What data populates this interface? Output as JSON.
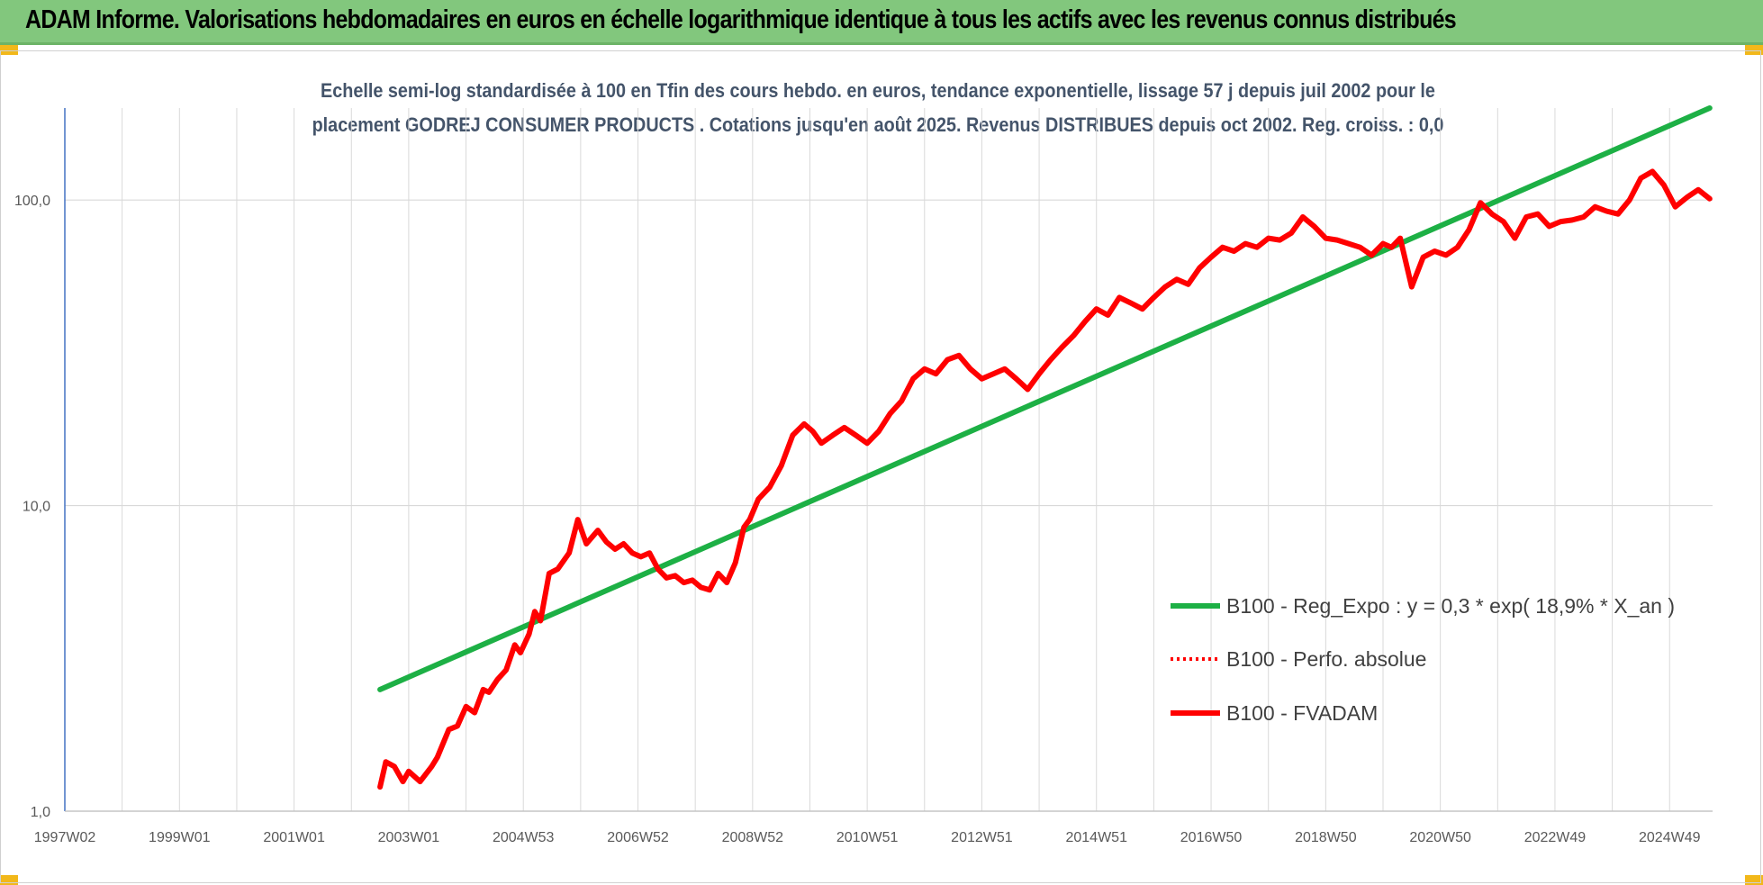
{
  "header": {
    "title": "ADAM Informe. Valorisations hebdomadaires en euros en échelle logarithmique identique à tous les actifs avec les revenus connus distribués"
  },
  "chart_data": {
    "type": "line",
    "title": "Echelle semi-log standardisée à 100 en Tfin des cours hebdo. en euros, tendance exponentielle, lissage 57 j depuis juil 2002 pour le",
    "subtitle": "placement GODREJ CONSUMER PRODUCTS . Cotations jusqu'en août 2025. Revenus DISTRIBUES depuis oct 2002. Reg. croiss. : 0,0",
    "y_scale": "log",
    "ylim": [
      1,
      200
    ],
    "y_ticks": [
      "1,0",
      "10,0",
      "100,0"
    ],
    "y_tick_values": [
      1,
      10,
      100
    ],
    "xlim": [
      1997.0,
      2025.75
    ],
    "x_ticks": [
      "1997W02",
      "1999W01",
      "2001W01",
      "2003W01",
      "2004W53",
      "2006W52",
      "2008W52",
      "2010W51",
      "2012W51",
      "2014W51",
      "2016W50",
      "2018W50",
      "2020W50",
      "2022W49",
      "2024W49"
    ],
    "x_tick_values": [
      1997.0,
      1999.0,
      2001.0,
      2003.0,
      2005.0,
      2007.0,
      2009.0,
      2011.0,
      2013.0,
      2015.0,
      2017.0,
      2019.0,
      2021.0,
      2023.0,
      2025.0
    ],
    "grid": "vertical and horizontal",
    "legend_placement": "bottom-right",
    "series": [
      {
        "name": "B100 - Reg_Expo : y = 0,3 * exp( 18,9% *  X_an )",
        "color": "#1db045",
        "style": "solid",
        "x": [
          2002.5,
          2025.7
        ],
        "y": [
          2.5,
          200
        ]
      },
      {
        "name": "B100 - Perfo. absolue",
        "color": "#ff0000",
        "style": "dotted",
        "x": [],
        "y": []
      },
      {
        "name": "B100 - FVADAM",
        "color": "#ff0000",
        "style": "solid",
        "x": [
          2002.5,
          2002.6,
          2002.75,
          2002.9,
          2003.0,
          2003.2,
          2003.4,
          2003.5,
          2003.7,
          2003.85,
          2004.0,
          2004.15,
          2004.3,
          2004.4,
          2004.55,
          2004.7,
          2004.85,
          2004.95,
          2005.1,
          2005.2,
          2005.3,
          2005.45,
          2005.6,
          2005.8,
          2005.95,
          2006.1,
          2006.3,
          2006.45,
          2006.6,
          2006.75,
          2006.9,
          2007.05,
          2007.2,
          2007.35,
          2007.5,
          2007.65,
          2007.8,
          2007.95,
          2008.1,
          2008.25,
          2008.4,
          2008.55,
          2008.7,
          2008.85,
          2008.95,
          2009.1,
          2009.3,
          2009.5,
          2009.7,
          2009.9,
          2010.05,
          2010.2,
          2010.4,
          2010.6,
          2010.8,
          2011.0,
          2011.2,
          2011.4,
          2011.6,
          2011.8,
          2012.0,
          2012.2,
          2012.4,
          2012.6,
          2012.8,
          2013.0,
          2013.2,
          2013.4,
          2013.6,
          2013.8,
          2014.0,
          2014.2,
          2014.4,
          2014.6,
          2014.8,
          2015.0,
          2015.2,
          2015.4,
          2015.6,
          2015.8,
          2016.0,
          2016.2,
          2016.4,
          2016.6,
          2016.8,
          2017.0,
          2017.2,
          2017.4,
          2017.6,
          2017.8,
          2018.0,
          2018.2,
          2018.4,
          2018.6,
          2018.8,
          2019.0,
          2019.2,
          2019.4,
          2019.6,
          2019.8,
          2020.0,
          2020.15,
          2020.3,
          2020.5,
          2020.7,
          2020.9,
          2021.1,
          2021.3,
          2021.5,
          2021.7,
          2021.9,
          2022.1,
          2022.3,
          2022.5,
          2022.7,
          2022.9,
          2023.1,
          2023.3,
          2023.5,
          2023.7,
          2023.9,
          2024.1,
          2024.3,
          2024.5,
          2024.7,
          2024.9,
          2025.1,
          2025.3,
          2025.5,
          2025.7
        ],
        "y": [
          1.2,
          1.45,
          1.4,
          1.25,
          1.35,
          1.25,
          1.4,
          1.5,
          1.85,
          1.9,
          2.2,
          2.1,
          2.5,
          2.45,
          2.7,
          2.9,
          3.5,
          3.3,
          3.8,
          4.5,
          4.2,
          6.0,
          6.2,
          7.0,
          9.0,
          7.5,
          8.3,
          7.6,
          7.2,
          7.5,
          7.0,
          6.8,
          7.0,
          6.2,
          5.8,
          5.9,
          5.6,
          5.7,
          5.4,
          5.3,
          6.0,
          5.6,
          6.5,
          8.5,
          9.0,
          10.5,
          11.5,
          13.5,
          17.0,
          18.5,
          17.5,
          16.0,
          17.0,
          18.0,
          17.0,
          16.0,
          17.5,
          20.0,
          22.0,
          26.0,
          28.0,
          27.0,
          30.0,
          31.0,
          28.0,
          26.0,
          27.0,
          28.0,
          26.0,
          24.0,
          27.0,
          30.0,
          33.0,
          36.0,
          40.0,
          44.0,
          42.0,
          48.0,
          46.0,
          44.0,
          48.0,
          52.0,
          55.0,
          53.0,
          60.0,
          65.0,
          70.0,
          68.0,
          72.0,
          70.0,
          75.0,
          74.0,
          78.0,
          88.0,
          82.0,
          75.0,
          74.0,
          72.0,
          70.0,
          66.0,
          72.0,
          70.0,
          75.0,
          52.0,
          65.0,
          68.0,
          66.0,
          70.0,
          80.0,
          98.0,
          90.0,
          85.0,
          75.0,
          88.0,
          90.0,
          82.0,
          85.0,
          86.0,
          88.0,
          95.0,
          92.0,
          90.0,
          100.0,
          118.0,
          124.0,
          112.0,
          95.0,
          102.0,
          108.0,
          101.0
        ]
      }
    ]
  }
}
